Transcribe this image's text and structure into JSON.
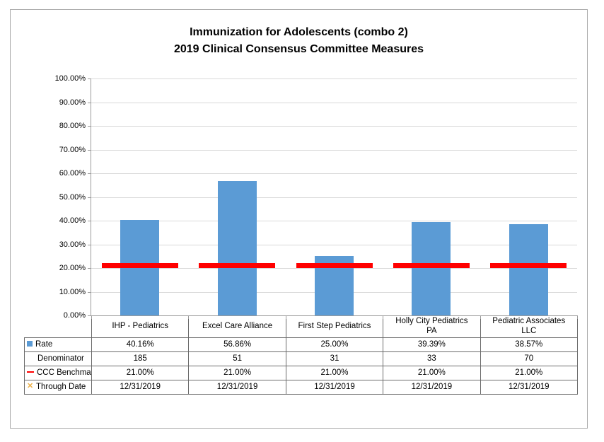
{
  "title": {
    "line1": "Immunization for Adolescents (combo 2)",
    "line2": "2019 Clinical Consensus Committee Measures"
  },
  "colors": {
    "bar_blue": "#5B9BD5",
    "benchmark_red": "#FF0000",
    "through_date_orange": "#EDB24B",
    "gridline": "#D9D9D9",
    "axis": "#9B9B9B",
    "table_border": "#6B6B6B",
    "frame_border": "#A9A9A9",
    "text": "#000000"
  },
  "chart_data": {
    "type": "bar",
    "title": "Immunization for Adolescents (combo 2) 2019 Clinical Consensus Committee Measures",
    "categories": [
      "IHP - Pediatrics",
      "Excel Care Alliance",
      "First Step Pediatrics",
      "Holly City Pediatrics PA",
      "Pediatric Associates LLC"
    ],
    "series": [
      {
        "name": "Rate",
        "plot": "bar",
        "legend_icon": "square",
        "color": "#5B9BD5",
        "values": [
          40.16,
          56.86,
          25.0,
          39.39,
          38.57
        ],
        "display": [
          "40.16%",
          "56.86%",
          "25.00%",
          "39.39%",
          "38.57%"
        ]
      },
      {
        "name": "Denominator",
        "plot": "none",
        "legend_icon": "none",
        "color": "",
        "values": [
          185,
          51,
          31,
          33,
          70
        ],
        "display": [
          "185",
          "51",
          "31",
          "33",
          "70"
        ]
      },
      {
        "name": "CCC Benchmark",
        "plot": "segment",
        "legend_icon": "dash",
        "color": "#FF0000",
        "values": [
          21,
          21,
          21,
          21,
          21
        ],
        "display": [
          "21.00%",
          "21.00%",
          "21.00%",
          "21.00%",
          "21.00%"
        ]
      },
      {
        "name": "Through Date",
        "plot": "none",
        "legend_icon": "x",
        "color": "#EDB24B",
        "values": [
          null,
          null,
          null,
          null,
          null
        ],
        "display": [
          "12/31/2019",
          "12/31/2019",
          "12/31/2019",
          "12/31/2019",
          "12/31/2019"
        ]
      }
    ],
    "y_axis": {
      "min": 0,
      "max": 100,
      "step": 10,
      "tick_labels": [
        "0.00%",
        "10.00%",
        "20.00%",
        "30.00%",
        "40.00%",
        "50.00%",
        "60.00%",
        "70.00%",
        "80.00%",
        "90.00%",
        "100.00%"
      ]
    },
    "grid": true,
    "legend_position": "table-left",
    "xlabel": "",
    "ylabel": ""
  }
}
